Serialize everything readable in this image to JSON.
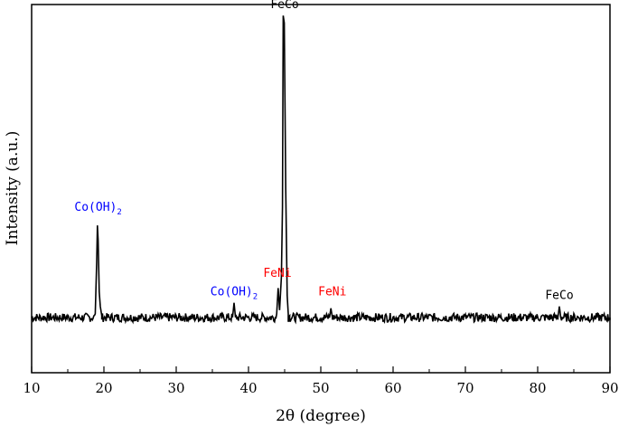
{
  "chart_data": {
    "type": "line",
    "title": "",
    "xlabel": "2θ (degree)",
    "ylabel": "Intensity (a.u.)",
    "xlim": [
      10,
      90
    ],
    "ylim": [
      0,
      100
    ],
    "xticks": [
      10,
      20,
      30,
      40,
      50,
      60,
      70,
      80,
      90
    ],
    "grid": false,
    "legend": "none",
    "series": [
      {
        "color": "#000000",
        "baseline": 15,
        "noise": 1.2,
        "x": [
          10,
          18.8,
          19.0,
          19.1,
          19.2,
          19.35,
          19.5,
          19.7,
          37.8,
          38.0,
          38.2,
          43.9,
          44.1,
          44.3,
          44.55,
          44.7,
          44.8,
          44.95,
          45.15,
          45.35,
          45.5,
          45.7,
          51.2,
          51.4,
          51.6,
          82.8,
          83.0,
          83.2,
          90
        ],
        "y": [
          15,
          16,
          30,
          40,
          36,
          22,
          18,
          15.5,
          15,
          19,
          15,
          16,
          23,
          17,
          26,
          45,
          97,
          95,
          50,
          21,
          16,
          15.5,
          15,
          17.5,
          15,
          15,
          18,
          15,
          15
        ]
      }
    ],
    "annotations": [
      {
        "text": "Co(OH)",
        "sub": "2",
        "x": 19.2,
        "y": 44,
        "color": "#0000ff"
      },
      {
        "text": "Co(OH)",
        "sub": "2",
        "x": 38.0,
        "y": 21,
        "color": "#0000ff"
      },
      {
        "text": "FeNi",
        "x": 44.0,
        "y": 26,
        "color": "#ff0000"
      },
      {
        "text": "FeNi",
        "x": 51.6,
        "y": 21,
        "color": "#ff0000"
      },
      {
        "text": "FeCo",
        "x": 45.0,
        "y": 99,
        "color": "#000000"
      },
      {
        "text": "FeCo",
        "x": 83.0,
        "y": 20,
        "color": "#000000"
      }
    ]
  }
}
